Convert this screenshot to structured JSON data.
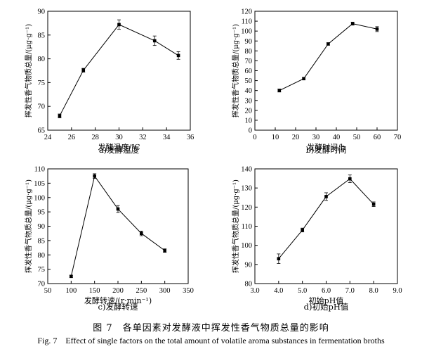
{
  "chart_data": [
    {
      "type": "line",
      "subtitle": "a)发酵温度",
      "xlabel": "发酵温度/℃",
      "ylabel": "挥发性香气物质总量/(μg·g⁻¹)",
      "xlim": [
        24,
        36
      ],
      "ylim": [
        65,
        90
      ],
      "xticks": [
        24,
        26,
        28,
        30,
        32,
        34,
        36
      ],
      "yticks": [
        65,
        70,
        75,
        80,
        85,
        90
      ],
      "x": [
        25,
        27,
        30,
        33,
        35
      ],
      "y": [
        68,
        77.6,
        87.2,
        83.8,
        80.7
      ],
      "err": [
        0.4,
        0.4,
        1.0,
        1.0,
        0.8
      ]
    },
    {
      "type": "line",
      "subtitle": "b)发酵时间",
      "xlabel": "发酵时间/h",
      "ylabel": "挥发性香气物质总量/(μg·g⁻¹)",
      "xlim": [
        0,
        70
      ],
      "ylim": [
        0,
        120
      ],
      "xticks": [
        0,
        10,
        20,
        30,
        40,
        50,
        60,
        70
      ],
      "yticks": [
        0,
        10,
        20,
        30,
        40,
        50,
        60,
        70,
        80,
        90,
        100,
        110,
        120
      ],
      "x": [
        12,
        24,
        36,
        48,
        60
      ],
      "y": [
        40,
        52,
        87,
        107.5,
        102
      ],
      "err": [
        1.5,
        1.2,
        1.2,
        1.5,
        2.5
      ]
    },
    {
      "type": "line",
      "subtitle": "c)发酵转速",
      "xlabel": "发酵转速/(r·min⁻¹)",
      "ylabel": "挥发性香气物质总量/(μg·g⁻¹)",
      "xlim": [
        50,
        350
      ],
      "ylim": [
        70,
        110
      ],
      "xticks": [
        50,
        100,
        150,
        200,
        250,
        300,
        350
      ],
      "yticks": [
        70,
        75,
        80,
        85,
        90,
        95,
        100,
        105,
        110
      ],
      "x": [
        100,
        150,
        200,
        250,
        300
      ],
      "y": [
        72.5,
        107.5,
        96,
        87.5,
        81.5
      ],
      "err": [
        0.4,
        0.8,
        1.2,
        0.8,
        0.6
      ]
    },
    {
      "type": "line",
      "subtitle": "d)初始pH值",
      "xlabel": "初始pH值",
      "ylabel": "挥发性香气物质总量/(μg·g⁻¹)",
      "xlim": [
        3.0,
        9.0
      ],
      "ylim": [
        80,
        140
      ],
      "xticks": [
        3.0,
        4.0,
        5.0,
        6.0,
        7.0,
        8.0,
        9.0
      ],
      "ytickvals": [
        80,
        90,
        100,
        110,
        120,
        130,
        140
      ],
      "x": [
        4.0,
        5.0,
        6.0,
        7.0,
        8.0
      ],
      "y": [
        93,
        108,
        125.5,
        134.8,
        121.5
      ],
      "err": [
        2.5,
        1.0,
        2.0,
        2.0,
        1.2
      ]
    }
  ],
  "caption": {
    "cn": "图 7　各单因素对发酵液中挥发性香气物质总量的影响",
    "en": "Fig. 7　Effect of single factors on the total amount of volatile aroma substances in fermentation broths"
  }
}
